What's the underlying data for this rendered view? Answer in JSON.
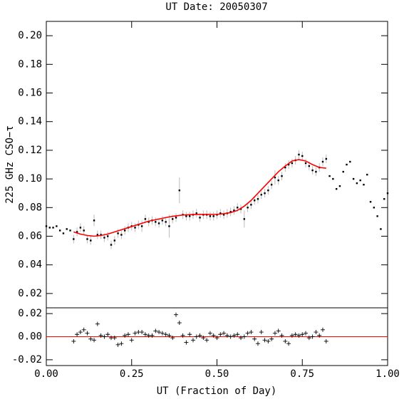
{
  "chart_data": [
    {
      "type": "scatter",
      "title": "UT Date: 20050307",
      "ylabel": "225 GHz CSO−τ",
      "xlim": [
        0,
        1
      ],
      "ylim": [
        0.01,
        0.21
      ],
      "yticks": [
        0.02,
        0.04,
        0.06,
        0.08,
        {
          "value": 0.1,
          "label": "0.10"
        },
        0.12,
        0.14,
        0.16,
        0.18,
        {
          "value": 0.2,
          "label": "0.20"
        }
      ],
      "color": "#000000",
      "error_color": "#bbbbbb",
      "x": [
        0,
        0.01,
        0.02,
        0.03,
        0.04,
        0.05,
        0.06,
        0.07,
        0.08,
        0.09,
        0.1,
        0.11,
        0.12,
        0.13,
        0.14,
        0.15,
        0.16,
        0.17,
        0.18,
        0.19,
        0.2,
        0.21,
        0.22,
        0.23,
        0.24,
        0.25,
        0.26,
        0.27,
        0.28,
        0.29,
        0.3,
        0.31,
        0.32,
        0.33,
        0.34,
        0.35,
        0.36,
        0.37,
        0.38,
        0.39,
        0.4,
        0.41,
        0.42,
        0.43,
        0.44,
        0.45,
        0.46,
        0.47,
        0.48,
        0.49,
        0.5,
        0.51,
        0.52,
        0.53,
        0.54,
        0.55,
        0.56,
        0.57,
        0.58,
        0.59,
        0.6,
        0.61,
        0.62,
        0.63,
        0.64,
        0.65,
        0.66,
        0.67,
        0.68,
        0.69,
        0.7,
        0.71,
        0.72,
        0.73,
        0.74,
        0.75,
        0.76,
        0.77,
        0.78,
        0.79,
        0.8,
        0.81,
        0.82,
        0.83,
        0.84,
        0.85,
        0.86,
        0.87,
        0.88,
        0.89,
        0.9,
        0.91,
        0.92,
        0.93,
        0.94,
        0.95,
        0.96,
        0.97,
        0.98,
        0.99,
        1
      ],
      "values": [
        0.067,
        0.066,
        0.066,
        0.067,
        0.064,
        0.062,
        0.065,
        0.064,
        0.058,
        0.063,
        0.066,
        0.064,
        0.058,
        0.057,
        0.071,
        0.061,
        0.061,
        0.059,
        0.06,
        0.054,
        0.057,
        0.062,
        0.061,
        0.064,
        0.066,
        0.067,
        0.066,
        0.068,
        0.067,
        0.072,
        0.07,
        0.071,
        0.07,
        0.069,
        0.071,
        0.07,
        0.067,
        0.072,
        0.073,
        0.092,
        0.075,
        0.074,
        0.074,
        0.075,
        0.076,
        0.073,
        0.075,
        0.075,
        0.074,
        0.074,
        0.075,
        0.076,
        0.075,
        0.076,
        0.077,
        0.078,
        0.08,
        0.079,
        0.072,
        0.08,
        0.082,
        0.085,
        0.086,
        0.089,
        0.09,
        0.092,
        0.096,
        0.101,
        0.099,
        0.102,
        0.108,
        0.11,
        0.111,
        0.113,
        0.117,
        0.116,
        0.111,
        0.109,
        0.106,
        0.105,
        0.108,
        0.112,
        0.114,
        0.102,
        0.1,
        0.093,
        0.095,
        0.105,
        0.11,
        0.112,
        0.1,
        0.097,
        0.099,
        0.096,
        0.103,
        0.084,
        0.08,
        0.074,
        0.065,
        0.086,
        0.09
      ],
      "errors": [
        null,
        null,
        null,
        null,
        null,
        null,
        null,
        null,
        0.003,
        0.003,
        0.003,
        0.003,
        0.003,
        0.003,
        0.004,
        0.003,
        0.003,
        0.003,
        0.003,
        0.003,
        0.003,
        0.003,
        0.003,
        0.003,
        0.003,
        0.003,
        0.003,
        0.003,
        0.004,
        0.003,
        0.003,
        0.003,
        0.003,
        0.003,
        0.003,
        0.003,
        0.008,
        0.003,
        0.003,
        0.009,
        0.003,
        0.003,
        0.003,
        0.003,
        0.003,
        0.003,
        0.003,
        0.003,
        0.003,
        0.003,
        0.003,
        0.003,
        0.003,
        0.003,
        0.003,
        0.003,
        0.003,
        0.003,
        0.006,
        0.003,
        0.003,
        0.003,
        0.003,
        0.003,
        0.003,
        0.003,
        0.003,
        0.005,
        0.003,
        0.003,
        0.003,
        0.003,
        0.003,
        0.003,
        0.003,
        0.003,
        0.003,
        0.003,
        0.003,
        0.003,
        0.003,
        0.003,
        0.003,
        null,
        null,
        null,
        null,
        null,
        null,
        null,
        null,
        null,
        null,
        null,
        null,
        null,
        null,
        null,
        null,
        null,
        null
      ],
      "fit": {
        "color": "#ff0000",
        "x": [
          0.08,
          0.1,
          0.12,
          0.14,
          0.16,
          0.18,
          0.2,
          0.22,
          0.24,
          0.26,
          0.28,
          0.3,
          0.32,
          0.34,
          0.36,
          0.38,
          0.4,
          0.42,
          0.44,
          0.46,
          0.48,
          0.5,
          0.52,
          0.54,
          0.56,
          0.58,
          0.6,
          0.62,
          0.64,
          0.66,
          0.68,
          0.7,
          0.72,
          0.74,
          0.76,
          0.78,
          0.8,
          0.82
        ],
        "values": [
          0.063,
          0.0615,
          0.0605,
          0.06,
          0.0605,
          0.0615,
          0.063,
          0.0645,
          0.066,
          0.0675,
          0.069,
          0.0705,
          0.0715,
          0.0725,
          0.0735,
          0.0742,
          0.0748,
          0.075,
          0.0752,
          0.0752,
          0.0752,
          0.0753,
          0.0757,
          0.0765,
          0.078,
          0.081,
          0.085,
          0.09,
          0.095,
          0.1,
          0.105,
          0.109,
          0.1125,
          0.1135,
          0.1125,
          0.11,
          0.108,
          0.1075
        ]
      }
    },
    {
      "type": "residual",
      "xlabel": "UT (Fraction of Day)",
      "xlim": [
        0,
        1
      ],
      "xticks": [
        {
          "value": 0,
          "label": "0.00"
        },
        0.25,
        {
          "value": 0.5,
          "label": "0.50"
        },
        0.75,
        {
          "value": 1,
          "label": "1.00"
        }
      ],
      "ylim": [
        -0.025,
        0.025
      ],
      "yticks": [
        -0.02,
        {
          "value": 0,
          "label": "0.00"
        },
        0.02
      ],
      "color": "#000000",
      "hline": 0,
      "hline_color": "#ff0000",
      "x": [
        0.08,
        0.09,
        0.1,
        0.11,
        0.12,
        0.13,
        0.14,
        0.15,
        0.16,
        0.17,
        0.18,
        0.19,
        0.2,
        0.21,
        0.22,
        0.23,
        0.24,
        0.25,
        0.26,
        0.27,
        0.28,
        0.29,
        0.3,
        0.31,
        0.32,
        0.33,
        0.34,
        0.35,
        0.36,
        0.37,
        0.38,
        0.39,
        0.4,
        0.41,
        0.42,
        0.43,
        0.44,
        0.45,
        0.46,
        0.47,
        0.48,
        0.49,
        0.5,
        0.51,
        0.52,
        0.53,
        0.54,
        0.55,
        0.56,
        0.57,
        0.58,
        0.59,
        0.6,
        0.61,
        0.62,
        0.63,
        0.64,
        0.65,
        0.66,
        0.67,
        0.68,
        0.69,
        0.7,
        0.71,
        0.72,
        0.73,
        0.74,
        0.75,
        0.76,
        0.77,
        0.78,
        0.79,
        0.8,
        0.81,
        0.82
      ],
      "values": [
        -0.004,
        0.002,
        0.004,
        0.006,
        0.003,
        -0.002,
        -0.003,
        0.011,
        0.001,
        0.0,
        0.002,
        -0.001,
        -0.001,
        -0.007,
        -0.006,
        0.001,
        0.002,
        -0.003,
        0.003,
        0.004,
        0.004,
        0.002,
        0.001,
        0.001,
        0.005,
        0.004,
        0.003,
        0.002,
        0.001,
        -0.001,
        0.019,
        0.012,
        0.001,
        -0.005,
        0.002,
        -0.003,
        0.0,
        0.001,
        -0.001,
        -0.003,
        0.003,
        0.001,
        -0.001,
        0.002,
        0.003,
        0.001,
        0.0,
        0.001,
        0.002,
        -0.001,
        0.0,
        0.003,
        0.004,
        -0.002,
        -0.006,
        0.004,
        -0.003,
        -0.004,
        -0.002,
        0.003,
        0.005,
        0.001,
        -0.004,
        -0.006,
        0.001,
        0.002,
        0.001,
        0.002,
        0.003,
        -0.001,
        0.0,
        0.004,
        0.001,
        0.006,
        -0.004
      ]
    }
  ]
}
